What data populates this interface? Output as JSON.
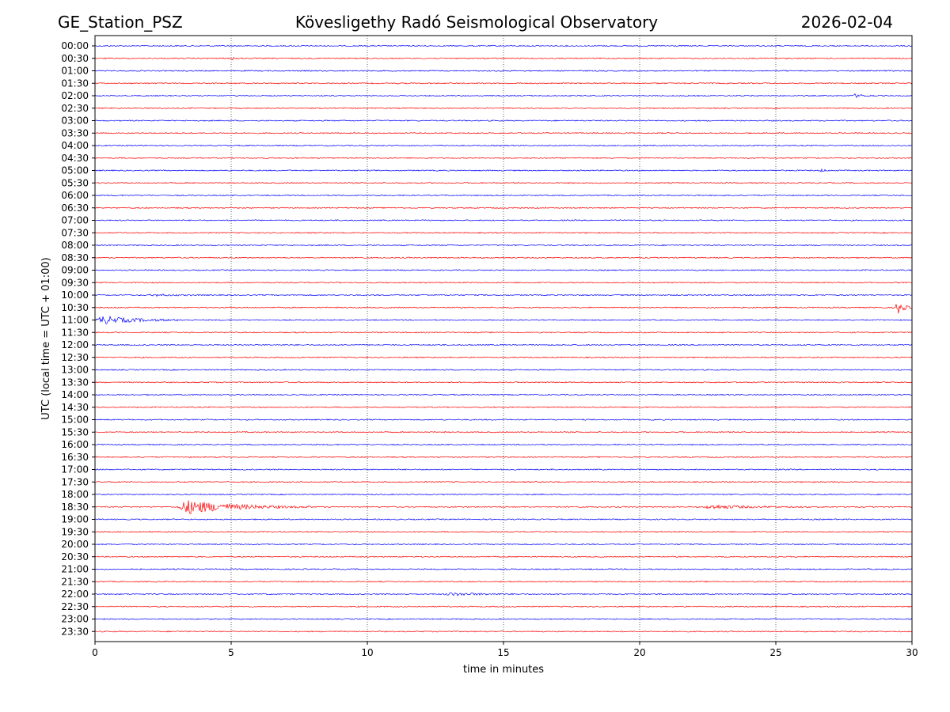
{
  "chart_data": {
    "type": "line",
    "title_left": "GE_Station_PSZ",
    "title_center": "Kövesligethy Radó Seismological Observatory",
    "title_right": "2026-02-04",
    "xlabel": "time in minutes",
    "ylabel": "UTC (local time = UTC + 01:00)",
    "xlim": [
      0,
      30
    ],
    "xticks": [
      0,
      5,
      10,
      15,
      20,
      25,
      30
    ],
    "grid": "vertical dotted at each x tick",
    "trace_colors": [
      "#0000ff",
      "#ff0000"
    ],
    "rows": [
      "00:00",
      "00:30",
      "01:00",
      "01:30",
      "02:00",
      "02:30",
      "03:00",
      "03:30",
      "04:00",
      "04:30",
      "05:00",
      "05:30",
      "06:00",
      "06:30",
      "07:00",
      "07:30",
      "08:00",
      "08:30",
      "09:00",
      "09:30",
      "10:00",
      "10:30",
      "11:00",
      "11:30",
      "12:00",
      "12:30",
      "13:00",
      "13:30",
      "14:00",
      "14:30",
      "15:00",
      "15:30",
      "16:00",
      "16:30",
      "17:00",
      "17:30",
      "18:00",
      "18:30",
      "19:00",
      "19:30",
      "20:00",
      "20:30",
      "21:00",
      "21:30",
      "22:00",
      "22:30",
      "23:00",
      "23:30"
    ],
    "events": [
      {
        "row": "00:30",
        "start_min": 5.0,
        "end_min": 5.5,
        "amplitude": 0.4
      },
      {
        "row": "02:00",
        "start_min": 27.8,
        "end_min": 28.9,
        "amplitude": 0.5
      },
      {
        "row": "05:00",
        "start_min": 26.6,
        "end_min": 27.0,
        "amplitude": 0.6
      },
      {
        "row": "10:00",
        "start_min": 2.0,
        "end_min": 4.2,
        "amplitude": 0.25
      },
      {
        "row": "10:30",
        "start_min": 29.4,
        "end_min": 30.0,
        "amplitude": 2.8
      },
      {
        "row": "11:00",
        "start_min": 0.0,
        "end_min": 3.6,
        "amplitude": 1.2
      },
      {
        "row": "18:30",
        "start_min": 3.0,
        "end_min": 8.0,
        "amplitude": 2.2
      },
      {
        "row": "18:30",
        "start_min": 22.3,
        "end_min": 26.2,
        "amplitude": 0.6
      },
      {
        "row": "22:00",
        "start_min": 12.8,
        "end_min": 15.8,
        "amplitude": 0.45
      }
    ]
  }
}
